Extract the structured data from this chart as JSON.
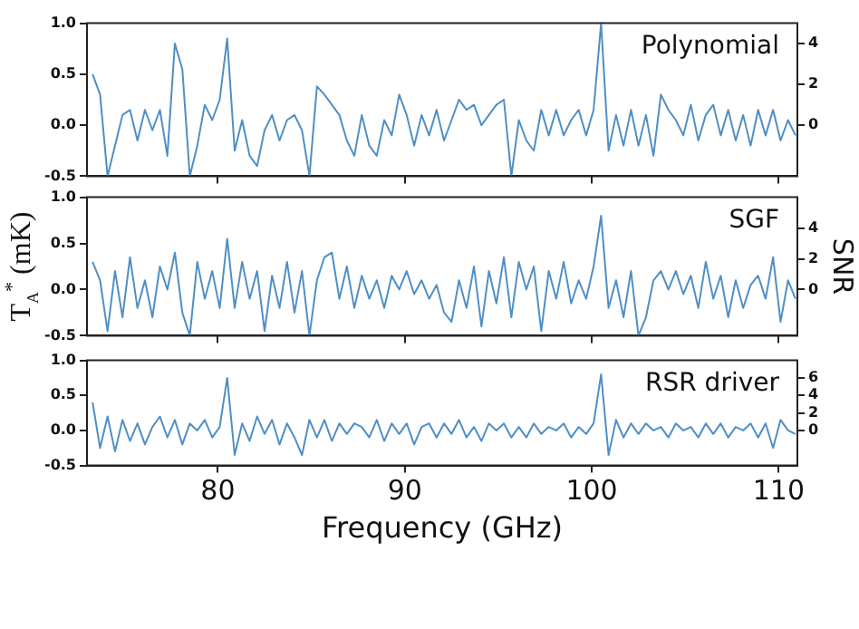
{
  "chart_data": [
    {
      "type": "line",
      "color": "#4f8fc6",
      "annotations": [
        "Polynomial"
      ],
      "xlim": [
        73,
        111
      ],
      "xticks": [
        80,
        90,
        100,
        110
      ],
      "ylim": [
        -0.5,
        1.0
      ],
      "yticks": [
        {
          "value": -0.5,
          "label": "-0.5"
        },
        {
          "value": 0,
          "label": "0.0"
        },
        {
          "value": 0.5,
          "label": "0.5"
        },
        {
          "value": 1,
          "label": "1.0"
        }
      ],
      "y2lim": [
        -2.5,
        5
      ],
      "y2ticks": [
        0,
        2,
        4
      ],
      "tick_labels": "y",
      "grid": false,
      "x": [
        73.3,
        73.7,
        74.1,
        74.5,
        74.9,
        75.3,
        75.7,
        76.1,
        76.5,
        76.9,
        77.3,
        77.7,
        78.1,
        78.5,
        78.9,
        79.3,
        79.7,
        80.1,
        80.5,
        80.9,
        81.3,
        81.7,
        82.1,
        82.5,
        82.9,
        83.3,
        83.7,
        84.1,
        84.5,
        84.9,
        85.3,
        85.7,
        86.1,
        86.5,
        86.9,
        87.3,
        87.7,
        88.1,
        88.5,
        88.9,
        89.3,
        89.7,
        90.1,
        90.5,
        90.9,
        91.3,
        91.7,
        92.1,
        92.5,
        92.9,
        93.3,
        93.7,
        94.1,
        94.5,
        94.9,
        95.3,
        95.7,
        96.1,
        96.5,
        96.9,
        97.3,
        97.7,
        98.1,
        98.5,
        98.9,
        99.3,
        99.7,
        100.1,
        100.5,
        100.9,
        101.3,
        101.7,
        102.1,
        102.5,
        102.9,
        103.3,
        103.7,
        104.1,
        104.5,
        104.9,
        105.3,
        105.7,
        106.1,
        106.5,
        106.9,
        107.3,
        107.7,
        108.1,
        108.5,
        108.9,
        109.3,
        109.7,
        110.1,
        110.5,
        110.9
      ],
      "values": [
        0.5,
        0.3,
        -0.5,
        -0.2,
        0.1,
        0.15,
        -0.15,
        0.15,
        -0.05,
        0.15,
        -0.3,
        0.8,
        0.55,
        -0.5,
        -0.2,
        0.2,
        0.05,
        0.25,
        0.85,
        -0.25,
        0.05,
        -0.3,
        -0.4,
        -0.05,
        0.1,
        -0.15,
        0.05,
        0.1,
        -0.05,
        -0.5,
        0.38,
        0.3,
        0.2,
        0.1,
        -0.15,
        -0.3,
        0.1,
        -0.2,
        -0.3,
        0.05,
        -0.1,
        0.3,
        0.1,
        -0.2,
        0.1,
        -0.1,
        0.15,
        -0.15,
        0.05,
        0.25,
        0.15,
        0.2,
        0.0,
        0.1,
        0.2,
        0.25,
        -0.5,
        0.05,
        -0.15,
        -0.25,
        0.15,
        -0.1,
        0.15,
        -0.1,
        0.05,
        0.15,
        -0.1,
        0.15,
        1.0,
        -0.25,
        0.1,
        -0.2,
        0.15,
        -0.2,
        0.1,
        -0.3,
        0.3,
        0.15,
        0.05,
        -0.1,
        0.2,
        -0.15,
        0.1,
        0.2,
        -0.1,
        0.15,
        -0.15,
        0.1,
        -0.2,
        0.15,
        -0.1,
        0.15,
        -0.15,
        0.05,
        -0.1
      ]
    },
    {
      "type": "line",
      "color": "#4f8fc6",
      "annotations": [
        "SGF"
      ],
      "ylabel": "T$_{A}$$^{*}$ (mK)",
      "y2label": "SNR",
      "xlim": [
        73,
        111
      ],
      "xticks": [
        80,
        90,
        100,
        110
      ],
      "ylim": [
        -0.5,
        1.0
      ],
      "yticks": [
        {
          "value": -0.5,
          "label": "-0.5"
        },
        {
          "value": 0,
          "label": "0.0"
        },
        {
          "value": 0.5,
          "label": "0.5"
        },
        {
          "value": 1,
          "label": "1.0"
        }
      ],
      "y2lim": [
        -3,
        6
      ],
      "y2ticks": [
        0,
        2,
        4
      ],
      "tick_labels": "y",
      "grid": false,
      "x": [
        73.3,
        73.7,
        74.1,
        74.5,
        74.9,
        75.3,
        75.7,
        76.1,
        76.5,
        76.9,
        77.3,
        77.7,
        78.1,
        78.5,
        78.9,
        79.3,
        79.7,
        80.1,
        80.5,
        80.9,
        81.3,
        81.7,
        82.1,
        82.5,
        82.9,
        83.3,
        83.7,
        84.1,
        84.5,
        84.9,
        85.3,
        85.7,
        86.1,
        86.5,
        86.9,
        87.3,
        87.7,
        88.1,
        88.5,
        88.9,
        89.3,
        89.7,
        90.1,
        90.5,
        90.9,
        91.3,
        91.7,
        92.1,
        92.5,
        92.9,
        93.3,
        93.7,
        94.1,
        94.5,
        94.9,
        95.3,
        95.7,
        96.1,
        96.5,
        96.9,
        97.3,
        97.7,
        98.1,
        98.5,
        98.9,
        99.3,
        99.7,
        100.1,
        100.5,
        100.9,
        101.3,
        101.7,
        102.1,
        102.5,
        102.9,
        103.3,
        103.7,
        104.1,
        104.5,
        104.9,
        105.3,
        105.7,
        106.1,
        106.5,
        106.9,
        107.3,
        107.7,
        108.1,
        108.5,
        108.9,
        109.3,
        109.7,
        110.1,
        110.5,
        110.9
      ],
      "values": [
        0.3,
        0.1,
        -0.45,
        0.2,
        -0.3,
        0.35,
        -0.2,
        0.1,
        -0.3,
        0.25,
        0.0,
        0.4,
        -0.25,
        -0.5,
        0.3,
        -0.1,
        0.2,
        -0.2,
        0.55,
        -0.2,
        0.3,
        -0.1,
        0.2,
        -0.45,
        0.15,
        -0.2,
        0.3,
        -0.25,
        0.2,
        -0.5,
        0.1,
        0.35,
        0.4,
        -0.1,
        0.25,
        -0.2,
        0.15,
        -0.1,
        0.1,
        -0.2,
        0.15,
        0.0,
        0.2,
        -0.05,
        0.1,
        -0.1,
        0.05,
        -0.25,
        -0.35,
        0.1,
        -0.2,
        0.25,
        -0.4,
        0.2,
        -0.15,
        0.35,
        -0.3,
        0.3,
        0.0,
        0.25,
        -0.45,
        0.2,
        -0.1,
        0.3,
        -0.15,
        0.1,
        -0.1,
        0.25,
        0.8,
        -0.2,
        0.1,
        -0.3,
        0.2,
        -0.5,
        -0.3,
        0.1,
        0.2,
        0.0,
        0.2,
        -0.05,
        0.15,
        -0.2,
        0.3,
        -0.1,
        0.15,
        -0.3,
        0.1,
        -0.2,
        0.05,
        0.15,
        -0.1,
        0.35,
        -0.35,
        0.1,
        -0.1
      ]
    },
    {
      "type": "line",
      "color": "#4f8fc6",
      "annotations": [
        "RSR driver"
      ],
      "xlabel": "Frequency (GHz)",
      "xlim": [
        73,
        111
      ],
      "xticks": [
        80,
        90,
        100,
        110
      ],
      "ylim": [
        -0.5,
        1.0
      ],
      "yticks": [
        {
          "value": -0.5,
          "label": "-0.5"
        },
        {
          "value": 0,
          "label": "0.0"
        },
        {
          "value": 0.5,
          "label": "0.5"
        },
        {
          "value": 1,
          "label": "1.0"
        }
      ],
      "y2lim": [
        -4,
        8
      ],
      "y2ticks": [
        0,
        2,
        4,
        6
      ],
      "grid": false,
      "x": [
        73.3,
        73.7,
        74.1,
        74.5,
        74.9,
        75.3,
        75.7,
        76.1,
        76.5,
        76.9,
        77.3,
        77.7,
        78.1,
        78.5,
        78.9,
        79.3,
        79.7,
        80.1,
        80.5,
        80.9,
        81.3,
        81.7,
        82.1,
        82.5,
        82.9,
        83.3,
        83.7,
        84.1,
        84.5,
        84.9,
        85.3,
        85.7,
        86.1,
        86.5,
        86.9,
        87.3,
        87.7,
        88.1,
        88.5,
        88.9,
        89.3,
        89.7,
        90.1,
        90.5,
        90.9,
        91.3,
        91.7,
        92.1,
        92.5,
        92.9,
        93.3,
        93.7,
        94.1,
        94.5,
        94.9,
        95.3,
        95.7,
        96.1,
        96.5,
        96.9,
        97.3,
        97.7,
        98.1,
        98.5,
        98.9,
        99.3,
        99.7,
        100.1,
        100.5,
        100.9,
        101.3,
        101.7,
        102.1,
        102.5,
        102.9,
        103.3,
        103.7,
        104.1,
        104.5,
        104.9,
        105.3,
        105.7,
        106.1,
        106.5,
        106.9,
        107.3,
        107.7,
        108.1,
        108.5,
        108.9,
        109.3,
        109.7,
        110.1,
        110.5,
        110.9
      ],
      "values": [
        0.4,
        -0.25,
        0.2,
        -0.3,
        0.15,
        -0.15,
        0.1,
        -0.2,
        0.05,
        0.2,
        -0.1,
        0.15,
        -0.2,
        0.1,
        0.0,
        0.15,
        -0.1,
        0.05,
        0.75,
        -0.35,
        0.1,
        -0.15,
        0.2,
        -0.05,
        0.15,
        -0.2,
        0.1,
        -0.1,
        -0.35,
        0.15,
        -0.1,
        0.15,
        -0.15,
        0.1,
        -0.05,
        0.1,
        0.05,
        -0.1,
        0.15,
        -0.15,
        0.1,
        -0.05,
        0.1,
        -0.2,
        0.05,
        0.1,
        -0.1,
        0.1,
        -0.05,
        0.15,
        -0.1,
        0.05,
        -0.15,
        0.1,
        0.0,
        0.1,
        -0.1,
        0.05,
        -0.1,
        0.1,
        -0.05,
        0.05,
        0.0,
        0.1,
        -0.1,
        0.05,
        -0.05,
        0.1,
        0.8,
        -0.35,
        0.15,
        -0.1,
        0.1,
        -0.05,
        0.1,
        0.0,
        0.05,
        -0.1,
        0.1,
        0.0,
        0.05,
        -0.1,
        0.1,
        -0.05,
        0.1,
        -0.1,
        0.05,
        0.0,
        0.1,
        -0.1,
        0.1,
        -0.25,
        0.15,
        0.0,
        -0.05
      ]
    }
  ]
}
